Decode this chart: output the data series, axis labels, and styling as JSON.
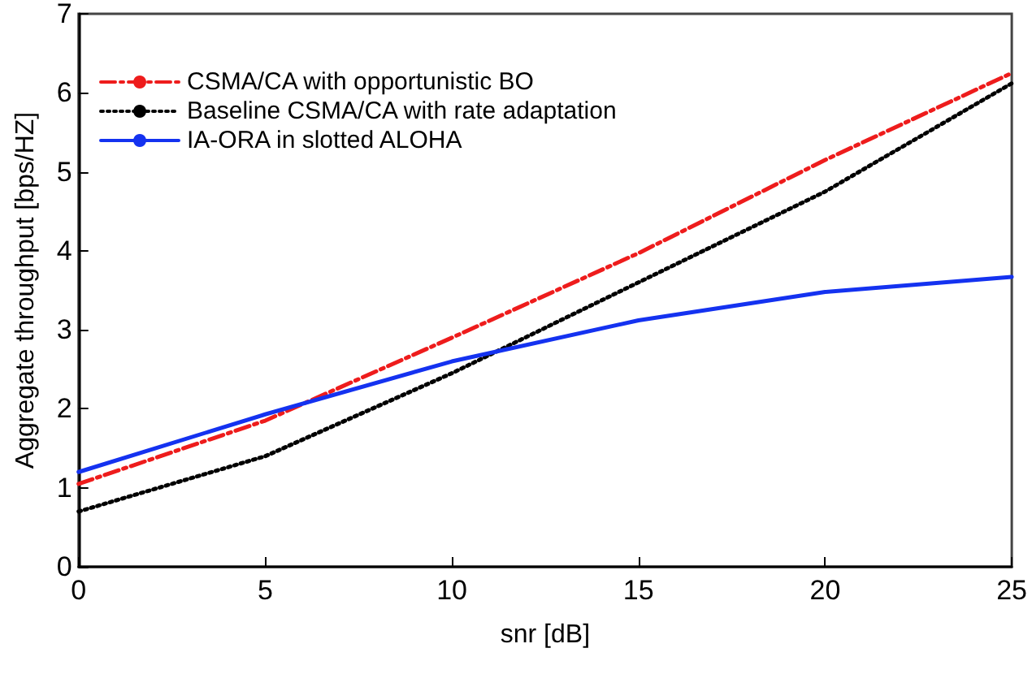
{
  "chart_data": {
    "type": "line",
    "xlabel": "snr [dB]",
    "ylabel": "Aggregate throughput [bps/HZ]",
    "x": [
      0,
      5,
      10,
      15,
      20,
      25
    ],
    "series": [
      {
        "name": "CSMA/CA with opportunistic BO",
        "color": "#ee1c1c",
        "line_style": "dashed",
        "values": [
          1.05,
          1.85,
          2.9,
          3.97,
          5.15,
          6.25
        ]
      },
      {
        "name": "Baseline CSMA/CA with rate adaptation",
        "color": "#000000",
        "line_style": "dotted",
        "values": [
          0.7,
          1.4,
          2.45,
          3.6,
          4.75,
          6.12
        ]
      },
      {
        "name": "IA-ORA in slotted ALOHA",
        "color": "#1432f0",
        "line_style": "solid",
        "values": [
          1.2,
          1.93,
          2.6,
          3.12,
          3.48,
          3.67
        ]
      }
    ],
    "xlim": [
      0,
      25
    ],
    "xticks": [
      0,
      5,
      10,
      15,
      20,
      25
    ],
    "ylim": [
      0,
      7
    ],
    "yticks": [
      0,
      1,
      2,
      3,
      4,
      5,
      6,
      7
    ],
    "grid": false,
    "legend": "top left",
    "marker": "none"
  }
}
